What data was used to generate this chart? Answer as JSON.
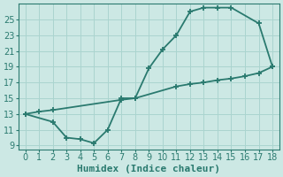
{
  "curve_x": [
    0,
    2,
    3,
    4,
    5,
    6,
    7,
    8,
    9,
    10,
    11,
    12,
    13,
    14,
    15,
    17,
    18
  ],
  "curve_y": [
    13,
    12,
    10,
    9.8,
    9.3,
    11,
    15,
    15,
    18.8,
    21.2,
    23,
    26,
    26.5,
    26.5,
    26.5,
    24.5,
    19
  ],
  "line_x": [
    0,
    1,
    2,
    7,
    8,
    11,
    12,
    13,
    14,
    15,
    16,
    17,
    18
  ],
  "line_y": [
    13,
    13.3,
    13.5,
    14.8,
    15,
    16.5,
    16.8,
    17,
    17.3,
    17.5,
    17.8,
    18.2,
    19
  ],
  "line_color": "#2a7a6f",
  "bg_color": "#cce8e4",
  "grid_color": "#aad4cf",
  "xlabel": "Humidex (Indice chaleur)",
  "xlim": [
    -0.5,
    18.5
  ],
  "ylim": [
    8.5,
    27
  ],
  "xticks": [
    0,
    1,
    2,
    3,
    4,
    5,
    6,
    7,
    8,
    9,
    10,
    11,
    12,
    13,
    14,
    15,
    16,
    17,
    18
  ],
  "yticks": [
    9,
    11,
    13,
    15,
    17,
    19,
    21,
    23,
    25
  ],
  "marker": "+",
  "markersize": 5,
  "linewidth": 1.3,
  "xlabel_fontsize": 8,
  "tick_fontsize": 7
}
